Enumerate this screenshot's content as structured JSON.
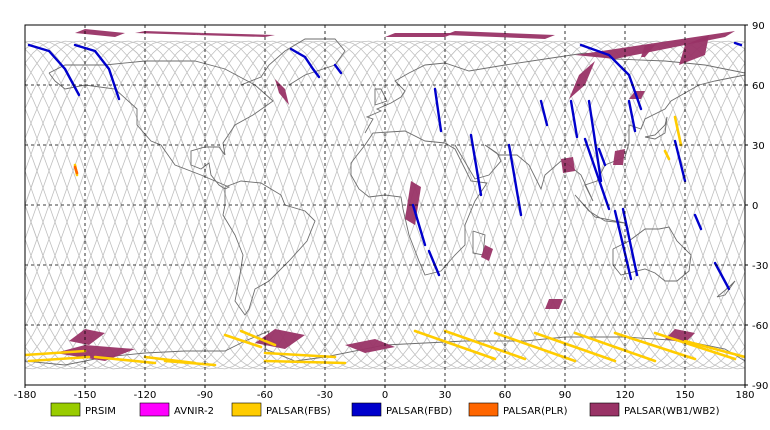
{
  "map": {
    "lon_range": [
      -180,
      180
    ],
    "lat_range": [
      -90,
      90
    ],
    "lon_ticks": [
      "-180",
      "-150",
      "-120",
      "-90",
      "-60",
      "-30",
      "0",
      "30",
      "60",
      "90",
      "120",
      "150",
      "180"
    ],
    "lat_ticks": [
      "90",
      "60",
      "30",
      "0",
      "-30",
      "-60",
      "-90"
    ],
    "grid": "dashed",
    "frame_color": "#000000",
    "orbit_track_color": "#c0c0c0",
    "coastline_color": "#6e6e6e"
  },
  "legend": [
    {
      "label": "PRSIM",
      "color": "#99cc00"
    },
    {
      "label": "AVNIR-2",
      "color": "#ff00ff"
    },
    {
      "label": "PALSAR(FBS)",
      "color": "#ffcc00"
    },
    {
      "label": "PALSAR(FBD)",
      "color": "#0000cc"
    },
    {
      "label": "PALSAR(PLR)",
      "color": "#ff6600"
    },
    {
      "label": "PALSAR(WB1/WB2)",
      "color": "#993366"
    }
  ],
  "swaths": {
    "wb": [
      {
        "lon": [
          -150,
          -130,
          -135,
          -155
        ],
        "lat": [
          88,
          86,
          84,
          86
        ]
      },
      {
        "lon": [
          -120,
          -90,
          -95,
          -125
        ],
        "lat": [
          87,
          86,
          85,
          86
        ]
      },
      {
        "lon": [
          -90,
          -55,
          -60,
          -95
        ],
        "lat": [
          86,
          85,
          84,
          85
        ]
      },
      {
        "lon": [
          -55,
          -50,
          -48,
          -53
        ],
        "lat": [
          63,
          58,
          50,
          56
        ]
      },
      {
        "lon": [
          5,
          35,
          30,
          0
        ],
        "lat": [
          86,
          86,
          84,
          84
        ]
      },
      {
        "lon": [
          35,
          85,
          80,
          30
        ],
        "lat": [
          87,
          85,
          83,
          85
        ]
      },
      {
        "lon": [
          95,
          175,
          170,
          115
        ],
        "lat": [
          75,
          87,
          84,
          73
        ]
      },
      {
        "lon": [
          97,
          105,
          100,
          92
        ],
        "lat": [
          65,
          72,
          60,
          53
        ]
      },
      {
        "lon": [
          150,
          162,
          160,
          147
        ],
        "lat": [
          80,
          85,
          75,
          70
        ]
      },
      {
        "lon": [
          125,
          130,
          128,
          122
        ],
        "lat": [
          57,
          57,
          53,
          53
        ]
      },
      {
        "lon": [
          130,
          135,
          130,
          128
        ],
        "lat": [
          80,
          80,
          74,
          74
        ]
      },
      {
        "lon": [
          13,
          18,
          15,
          10
        ],
        "lat": [
          12,
          9,
          -10,
          -7
        ]
      },
      {
        "lon": [
          50,
          54,
          52,
          48
        ],
        "lat": [
          -20,
          -22,
          -28,
          -26
        ]
      },
      {
        "lon": [
          82,
          89,
          87,
          80
        ],
        "lat": [
          -47,
          -47,
          -52,
          -52
        ]
      },
      {
        "lon": [
          -150,
          -140,
          -148,
          -158
        ],
        "lat": [
          -62,
          -64,
          -70,
          -68
        ]
      },
      {
        "lon": [
          -150,
          -125,
          -140,
          -165
        ],
        "lat": [
          -70,
          -72,
          -78,
          -74
        ]
      },
      {
        "lon": [
          -55,
          -40,
          -50,
          -65
        ],
        "lat": [
          -62,
          -65,
          -72,
          -69
        ]
      },
      {
        "lon": [
          -20,
          -5,
          5,
          -10
        ],
        "lat": [
          -70,
          -67,
          -71,
          -74
        ]
      },
      {
        "lon": [
          145,
          155,
          150,
          140
        ],
        "lat": [
          -62,
          -64,
          -69,
          -67
        ]
      },
      {
        "lon": [
          88,
          94,
          95,
          89
        ],
        "lat": [
          23,
          24,
          17,
          16
        ]
      },
      {
        "lon": [
          115,
          120,
          119,
          114
        ],
        "lat": [
          27,
          28,
          20,
          20
        ]
      }
    ],
    "fbd": [
      {
        "lon": [
          -178,
          -168,
          -160,
          -153
        ],
        "lat": [
          80,
          77,
          68,
          55
        ]
      },
      {
        "lon": [
          -155,
          -145,
          -138,
          -133
        ],
        "lat": [
          80,
          77,
          68,
          53
        ]
      },
      {
        "lon": [
          -47,
          -40,
          -36,
          -33
        ],
        "lat": [
          78,
          74,
          68,
          64
        ]
      },
      {
        "lon": [
          -25,
          -22
        ],
        "lat": [
          70,
          66
        ]
      },
      {
        "lon": [
          98,
          112,
          122,
          128
        ],
        "lat": [
          80,
          75,
          65,
          48
        ]
      },
      {
        "lon": [
          175,
          178
        ],
        "lat": [
          81,
          80
        ]
      },
      {
        "lon": [
          25,
          28
        ],
        "lat": [
          58,
          37
        ]
      },
      {
        "lon": [
          43,
          48
        ],
        "lat": [
          35,
          5
        ]
      },
      {
        "lon": [
          62,
          68
        ],
        "lat": [
          30,
          -5
        ]
      },
      {
        "lon": [
          78,
          81
        ],
        "lat": [
          52,
          40
        ]
      },
      {
        "lon": [
          93,
          96
        ],
        "lat": [
          52,
          34
        ]
      },
      {
        "lon": [
          102,
          108
        ],
        "lat": [
          52,
          12
        ]
      },
      {
        "lon": [
          107,
          110
        ],
        "lat": [
          28,
          20
        ]
      },
      {
        "lon": [
          122,
          125
        ],
        "lat": [
          52,
          37
        ]
      },
      {
        "lon": [
          100,
          112
        ],
        "lat": [
          33,
          -2
        ]
      },
      {
        "lon": [
          145,
          150
        ],
        "lat": [
          32,
          12
        ]
      },
      {
        "lon": [
          115,
          123
        ],
        "lat": [
          -3,
          -37
        ]
      },
      {
        "lon": [
          119,
          126
        ],
        "lat": [
          -2,
          -35
        ]
      },
      {
        "lon": [
          14,
          20
        ],
        "lat": [
          0,
          -20
        ]
      },
      {
        "lon": [
          22,
          27
        ],
        "lat": [
          -23,
          -35
        ]
      },
      {
        "lon": [
          155,
          158
        ],
        "lat": [
          -5,
          -12
        ]
      },
      {
        "lon": [
          165,
          172
        ],
        "lat": [
          -29,
          -42
        ]
      }
    ],
    "fbs": [
      {
        "lon": [
          -180,
          -150
        ],
        "lat": [
          -75,
          -73
        ]
      },
      {
        "lon": [
          -178,
          -148
        ],
        "lat": [
          -78,
          -76
        ]
      },
      {
        "lon": [
          -145,
          -115
        ],
        "lat": [
          -76,
          -79
        ]
      },
      {
        "lon": [
          -120,
          -95
        ],
        "lat": [
          -76,
          -79
        ]
      },
      {
        "lon": [
          -110,
          -85
        ],
        "lat": [
          -78,
          -80
        ]
      },
      {
        "lon": [
          -80,
          -62
        ],
        "lat": [
          -65,
          -71
        ]
      },
      {
        "lon": [
          -72,
          -55
        ],
        "lat": [
          -63,
          -70
        ]
      },
      {
        "lon": [
          -60,
          -25
        ],
        "lat": [
          -74,
          -76
        ]
      },
      {
        "lon": [
          -60,
          -20
        ],
        "lat": [
          -78,
          -79
        ]
      },
      {
        "lon": [
          15,
          55
        ],
        "lat": [
          -63,
          -77
        ]
      },
      {
        "lon": [
          30,
          70
        ],
        "lat": [
          -63,
          -77
        ]
      },
      {
        "lon": [
          55,
          95
        ],
        "lat": [
          -64,
          -78
        ]
      },
      {
        "lon": [
          75,
          115
        ],
        "lat": [
          -64,
          -78
        ]
      },
      {
        "lon": [
          95,
          135
        ],
        "lat": [
          -64,
          -78
        ]
      },
      {
        "lon": [
          115,
          155
        ],
        "lat": [
          -64,
          -77
        ]
      },
      {
        "lon": [
          135,
          175
        ],
        "lat": [
          -64,
          -77
        ]
      },
      {
        "lon": [
          150,
          180
        ],
        "lat": [
          -68,
          -76
        ]
      },
      {
        "lon": [
          145,
          148
        ],
        "lat": [
          44,
          30
        ]
      },
      {
        "lon": [
          140,
          142
        ],
        "lat": [
          27,
          23
        ]
      },
      {
        "lon": [
          -155,
          -154
        ],
        "lat": [
          20,
          15
        ]
      }
    ],
    "plr": [
      {
        "lon": [
          -155,
          -154
        ],
        "lat": [
          19,
          16
        ]
      }
    ]
  }
}
